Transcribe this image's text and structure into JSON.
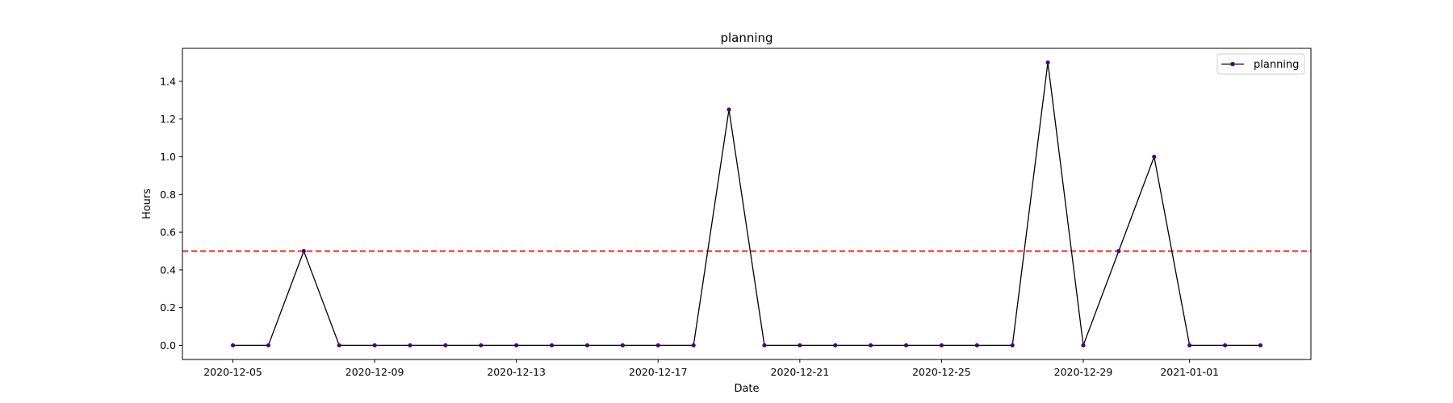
{
  "chart_data": {
    "type": "line",
    "title": "planning",
    "xlabel": "Date",
    "ylabel": "Hours",
    "x": [
      "2020-12-05",
      "2020-12-06",
      "2020-12-07",
      "2020-12-08",
      "2020-12-09",
      "2020-12-10",
      "2020-12-11",
      "2020-12-12",
      "2020-12-13",
      "2020-12-14",
      "2020-12-15",
      "2020-12-16",
      "2020-12-17",
      "2020-12-18",
      "2020-12-19",
      "2020-12-20",
      "2020-12-21",
      "2020-12-22",
      "2020-12-23",
      "2020-12-24",
      "2020-12-25",
      "2020-12-26",
      "2020-12-27",
      "2020-12-28",
      "2020-12-29",
      "2020-12-30",
      "2020-12-31",
      "2021-01-01",
      "2021-01-02",
      "2021-01-03"
    ],
    "series": [
      {
        "name": "planning",
        "values": [
          0,
          0,
          0.5,
          0,
          0,
          0,
          0,
          0,
          0,
          0,
          0,
          0,
          0,
          0,
          1.25,
          0,
          0,
          0,
          0,
          0,
          0,
          0,
          0,
          1.5,
          0,
          0.5,
          1.0,
          0,
          0,
          0
        ],
        "line_color": "#000000",
        "marker_color": "#4b0082"
      }
    ],
    "reference_line": {
      "y": 0.5,
      "color": "#ff0000",
      "style": "dashed"
    },
    "xticks": [
      "2020-12-05",
      "2020-12-09",
      "2020-12-13",
      "2020-12-17",
      "2020-12-21",
      "2020-12-25",
      "2020-12-29",
      "2021-01-01"
    ],
    "yticks": [
      0.0,
      0.2,
      0.4,
      0.6,
      0.8,
      1.0,
      1.2,
      1.4
    ],
    "xlim": [
      "2020-12-03T13:48:00",
      "2021-01-04T10:12:00"
    ],
    "ylim": [
      -0.075,
      1.575
    ],
    "legend_position": "top-right",
    "grid": false
  }
}
